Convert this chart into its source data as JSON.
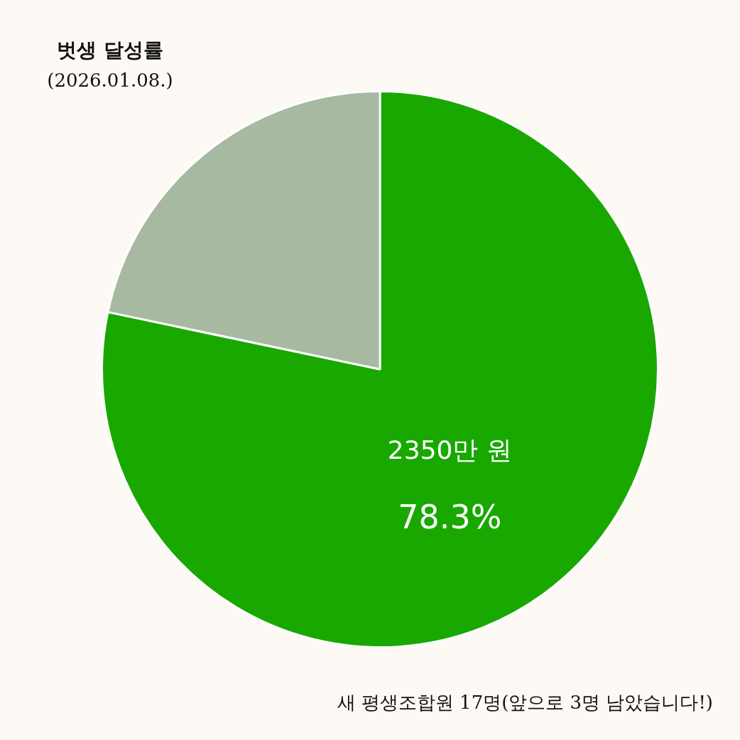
{
  "chart_data": {
    "type": "pie",
    "title": "벗생 달성률",
    "subtitle": "(2026.01.08.)",
    "categories": [
      null,
      null
    ],
    "values": [
      78.3,
      21.7
    ],
    "colors": [
      "#19a800",
      "#a7b9a1"
    ],
    "value_labels": [
      "2350만 원\n78.3%",
      null
    ],
    "annotations": [
      "새 평생조합원 17명(앞으로 3명 남았습니다!)"
    ],
    "legend": false
  }
}
